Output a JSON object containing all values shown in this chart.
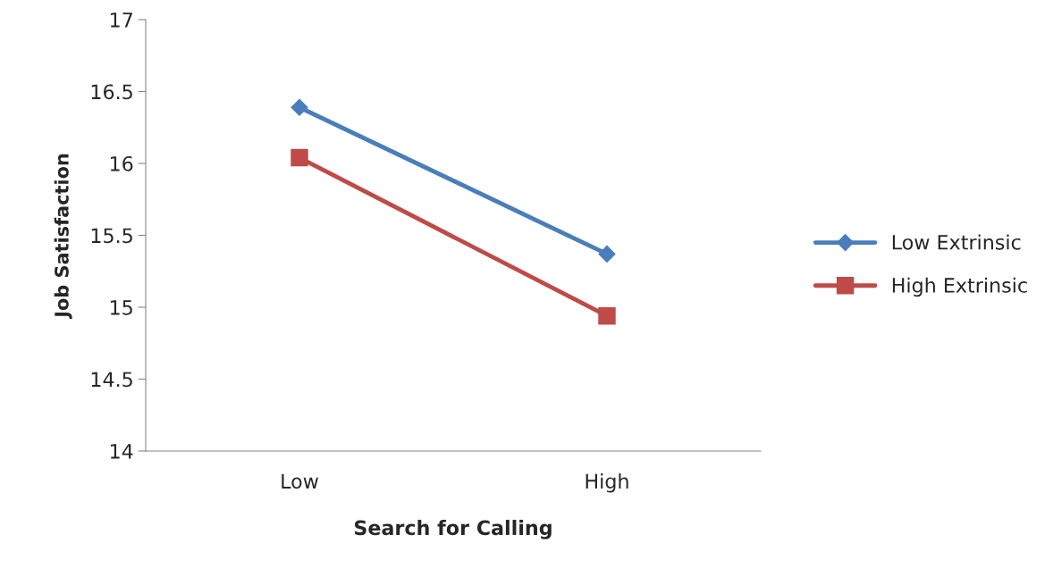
{
  "chart_data": {
    "type": "line",
    "xlabel": "Search for Calling",
    "ylabel": "Job Satisfaction",
    "categories": [
      "Low",
      "High"
    ],
    "series": [
      {
        "name": "Low Extrinsic",
        "color": "#4a7ebb",
        "marker": "diamond",
        "values": [
          16.39,
          15.37
        ]
      },
      {
        "name": "High Extrinsic",
        "color": "#be4b48",
        "marker": "square",
        "values": [
          16.04,
          14.94
        ]
      }
    ],
    "ylim": [
      14,
      17
    ],
    "yticks": [
      14,
      14.5,
      15,
      15.5,
      16,
      16.5,
      17
    ],
    "grid": false,
    "legend": "right",
    "line_style": "solid"
  }
}
